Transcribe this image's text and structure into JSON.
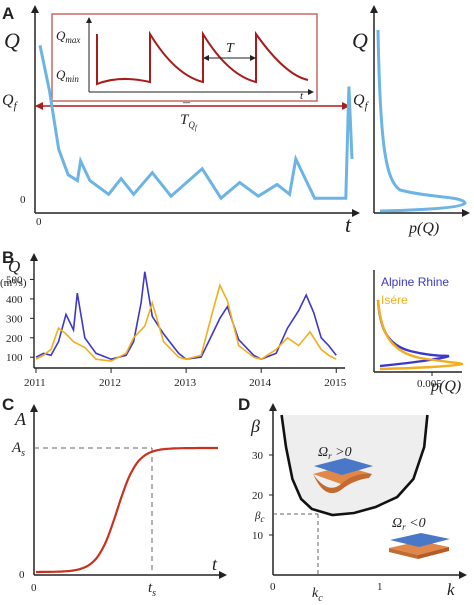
{
  "colors": {
    "light_blue": "#6cb4e4",
    "dark_red": "#b01c1c",
    "blue": "#3d38c8",
    "orange": "#f2ae1c",
    "red": "#c8321e",
    "shade": "#eeeeee"
  },
  "panels": {
    "a": {
      "label": "A",
      "ylabel": "Q",
      "xlabel": "t",
      "yticks": [
        "Q_f",
        "0"
      ],
      "xticks": [
        "0"
      ],
      "period_label": "T_Q_f",
      "inset": {
        "ymax": "Q_max",
        "ymin": "Q_min",
        "period": "T",
        "xlabel": "t"
      },
      "side": {
        "ylabel": "Q",
        "ytick": "Q_f",
        "xlabel": "p(Q)"
      }
    },
    "b": {
      "label": "B",
      "ylabel": "Q",
      "yunit": "(m³/s)",
      "side_xlabel": "p(Q)",
      "side_xtick": "0.005",
      "legend": [
        "Alpine Rhine",
        "Isére"
      ]
    },
    "c": {
      "label": "C",
      "ylabel": "A",
      "xlabel": "t",
      "yticks": [
        "A_s",
        "0"
      ],
      "xticks": [
        "0",
        "t_s"
      ]
    },
    "d": {
      "label": "D",
      "ylabel": "β",
      "xlabel": "k",
      "yticks": [
        "30",
        "20",
        "β_c",
        "10",
        "0"
      ],
      "xticks": [
        "0",
        "k_c",
        "1"
      ],
      "annotations": [
        "Ω_r > 0",
        "Ω_r < 0"
      ]
    }
  },
  "chart_data": [
    {
      "type": "line",
      "panel": "A",
      "title": "",
      "description_values": "sawtooth streamflow: sharp rise, exponential decay",
      "x": [
        0,
        1
      ],
      "ylim": [
        0,
        1
      ],
      "series": [
        {
          "values": [
            [
              0.0,
              0.83
            ],
            [
              0.03,
              0.6
            ],
            [
              0.06,
              0.3
            ],
            [
              0.09,
              0.17
            ],
            [
              0.12,
              0.14
            ],
            [
              0.13,
              0.24
            ],
            [
              0.16,
              0.14
            ],
            [
              0.22,
              0.07
            ],
            [
              0.26,
              0.15
            ],
            [
              0.3,
              0.07
            ],
            [
              0.36,
              0.18
            ],
            [
              0.42,
              0.06
            ],
            [
              0.52,
              0.2
            ],
            [
              0.58,
              0.05
            ],
            [
              0.64,
              0.13
            ],
            [
              0.7,
              0.06
            ],
            [
              0.76,
              0.12
            ],
            [
              0.8,
              0.07
            ],
            [
              0.82,
              0.25
            ],
            [
              0.88,
              0.05
            ],
            [
              0.98,
              0.05
            ],
            [
              0.99,
              0.62
            ],
            [
              1.0,
              0.25
            ]
          ]
        }
      ],
      "threshold_Qf": 0.55
    },
    {
      "type": "line",
      "panel": "B",
      "title": "",
      "xlabel": "",
      "ylabel": "Q (m³/s)",
      "x_ticks": [
        "2011",
        "2012",
        "2013",
        "2014",
        "2015"
      ],
      "y_ticks": [
        100,
        200,
        300,
        400,
        500
      ],
      "ylim": [
        60,
        600
      ],
      "xlim": [
        2011.0,
        2015.05
      ],
      "series": [
        {
          "name": "Alpine Rhine",
          "values": [
            [
              2011.0,
              100
            ],
            [
              2011.1,
              120
            ],
            [
              2011.2,
              110
            ],
            [
              2011.3,
              180
            ],
            [
              2011.4,
              320
            ],
            [
              2011.5,
              240
            ],
            [
              2011.55,
              430
            ],
            [
              2011.65,
              200
            ],
            [
              2011.8,
              120
            ],
            [
              2012.0,
              90
            ],
            [
              2012.2,
              110
            ],
            [
              2012.3,
              180
            ],
            [
              2012.4,
              380
            ],
            [
              2012.45,
              540
            ],
            [
              2012.55,
              310
            ],
            [
              2012.7,
              220
            ],
            [
              2012.9,
              120
            ],
            [
              2013.0,
              90
            ],
            [
              2013.2,
              100
            ],
            [
              2013.35,
              220
            ],
            [
              2013.45,
              300
            ],
            [
              2013.55,
              360
            ],
            [
              2013.7,
              190
            ],
            [
              2013.9,
              110
            ],
            [
              2014.0,
              90
            ],
            [
              2014.2,
              120
            ],
            [
              2014.35,
              250
            ],
            [
              2014.5,
              340
            ],
            [
              2014.6,
              420
            ],
            [
              2014.7,
              330
            ],
            [
              2014.8,
              200
            ],
            [
              2014.9,
              160
            ],
            [
              2015.0,
              110
            ]
          ]
        },
        {
          "name": "Isére",
          "values": [
            [
              2011.0,
              90
            ],
            [
              2011.1,
              110
            ],
            [
              2011.2,
              140
            ],
            [
              2011.3,
              250
            ],
            [
              2011.4,
              220
            ],
            [
              2011.5,
              180
            ],
            [
              2011.65,
              150
            ],
            [
              2011.8,
              90
            ],
            [
              2012.0,
              80
            ],
            [
              2012.2,
              120
            ],
            [
              2012.3,
              200
            ],
            [
              2012.45,
              260
            ],
            [
              2012.55,
              380
            ],
            [
              2012.7,
              180
            ],
            [
              2012.9,
              100
            ],
            [
              2013.0,
              90
            ],
            [
              2013.2,
              110
            ],
            [
              2013.35,
              330
            ],
            [
              2013.45,
              470
            ],
            [
              2013.55,
              390
            ],
            [
              2013.7,
              160
            ],
            [
              2013.9,
              100
            ],
            [
              2014.0,
              90
            ],
            [
              2014.2,
              140
            ],
            [
              2014.35,
              200
            ],
            [
              2014.5,
              160
            ],
            [
              2014.65,
              230
            ],
            [
              2014.8,
              140
            ],
            [
              2014.9,
              110
            ],
            [
              2015.0,
              90
            ]
          ]
        }
      ]
    },
    {
      "type": "line",
      "panel": "C",
      "title": "",
      "xlabel": "t",
      "ylabel": "A",
      "description_values": "logistic growth of A to plateau A_s at t_s",
      "xlim": [
        0,
        1.3
      ],
      "ylim": [
        0,
        1.1
      ],
      "ts": 0.85,
      "series": [
        {
          "values": [
            [
              0,
              0
            ],
            [
              0.2,
              0.0
            ],
            [
              0.35,
              0.04
            ],
            [
              0.5,
              0.25
            ],
            [
              0.6,
              0.55
            ],
            [
              0.7,
              0.85
            ],
            [
              0.8,
              0.98
            ],
            [
              0.85,
              1.0
            ],
            [
              1.3,
              1.0
            ]
          ]
        }
      ]
    },
    {
      "type": "line",
      "panel": "D",
      "title": "",
      "xlabel": "k",
      "ylabel": "β",
      "y_ticks": [
        10,
        20,
        30
      ],
      "x_ticks": [
        0,
        1
      ],
      "xlim": [
        0,
        1.55
      ],
      "ylim": [
        0,
        40
      ],
      "kc": 0.55,
      "beta_c": 15,
      "series": [
        {
          "values": [
            [
              0.08,
              40
            ],
            [
              0.12,
              32
            ],
            [
              0.18,
              24
            ],
            [
              0.26,
              19
            ],
            [
              0.36,
              16.5
            ],
            [
              0.55,
              15
            ],
            [
              0.75,
              15.5
            ],
            [
              0.95,
              17
            ],
            [
              1.15,
              19.5
            ],
            [
              1.3,
              24
            ],
            [
              1.4,
              32
            ],
            [
              1.43,
              40
            ]
          ]
        }
      ]
    }
  ]
}
